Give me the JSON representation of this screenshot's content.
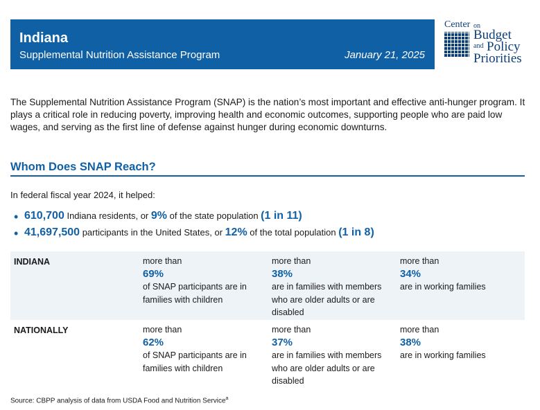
{
  "header": {
    "title": "Indiana",
    "subtitle": "Supplemental Nutrition Assistance Program",
    "date": "January 21, 2025"
  },
  "logo": {
    "line1": "Center",
    "line1b": "on",
    "line2": "Budget",
    "line3a": "and",
    "line3b": "Policy",
    "line4": "Priorities"
  },
  "intro": "The Supplemental Nutrition Assistance Program (SNAP) is the nation’s most important and effective anti-hunger program. It plays a critical role in reducing poverty, improving health and economic outcomes, supporting people who are paid low wages, and serving as the first line of defense against hunger during economic downturns.",
  "section_title": "Whom Does SNAP Reach?",
  "lead": "In federal fiscal year 2024, it helped:",
  "bullets": [
    {
      "n": "610,700",
      "t1": " Indiana residents, or ",
      "pct": "9%",
      "t2": " of the state population ",
      "ratio": "(1 in 11)"
    },
    {
      "n": "41,697,500",
      "t1": " participants in the United States, or ",
      "pct": "12%",
      "t2": " of the total population ",
      "ratio": "(1 in 8)"
    }
  ],
  "table": [
    {
      "label": "INDIANA",
      "cells": [
        {
          "pre": "more than",
          "pct": "69%",
          "desc": "of SNAP participants are in families with children"
        },
        {
          "pre": "more than",
          "pct": "38%",
          "desc": "are in families with members who are older adults or are disabled"
        },
        {
          "pre": "more than",
          "pct": "34%",
          "desc": "are in working families"
        }
      ]
    },
    {
      "label": "NATIONALLY",
      "cells": [
        {
          "pre": "more than",
          "pct": "62%",
          "desc": "of SNAP participants are in families with children"
        },
        {
          "pre": "more than",
          "pct": "37%",
          "desc": "are in families with members who are older adults or are disabled"
        },
        {
          "pre": "more than",
          "pct": "38%",
          "desc": "are in working families"
        }
      ]
    }
  ],
  "source": "Source: CBPP analysis of data from USDA Food and Nutrition Service",
  "source_sup": "a"
}
